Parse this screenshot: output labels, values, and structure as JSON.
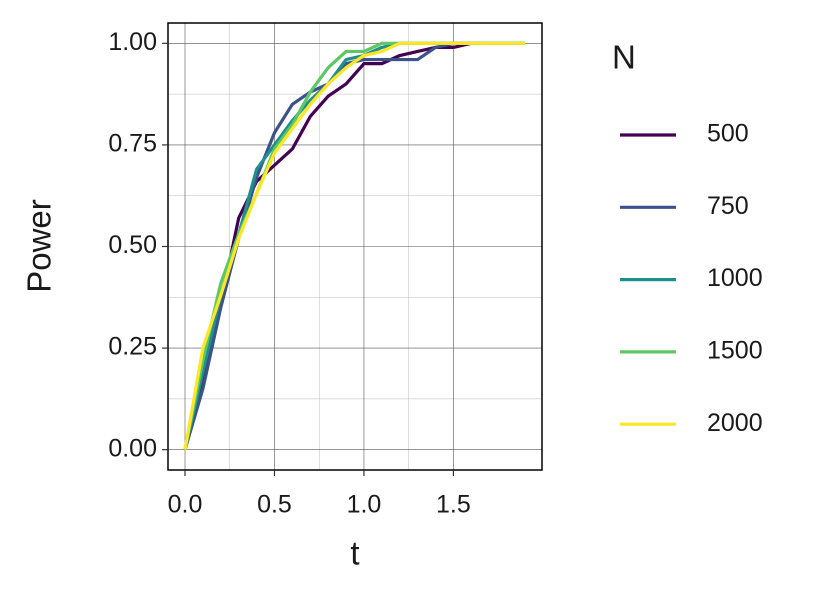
{
  "chart_data": {
    "type": "line",
    "x_label": "t",
    "y_label": "Power",
    "legend_title": "N",
    "x": [
      0,
      0.1,
      0.2,
      0.3,
      0.4,
      0.5,
      0.6,
      0.7,
      0.8,
      0.9,
      1.0,
      1.1,
      1.2,
      1.3,
      1.4,
      1.5,
      1.6,
      1.7,
      1.8,
      1.9
    ],
    "series": [
      {
        "name": "500",
        "color": "#440154",
        "values": [
          0,
          0.17,
          0.36,
          0.57,
          0.66,
          0.7,
          0.74,
          0.82,
          0.87,
          0.9,
          0.95,
          0.95,
          0.97,
          0.98,
          0.99,
          0.99,
          1,
          1,
          1,
          1
        ]
      },
      {
        "name": "750",
        "color": "#3B528B",
        "values": [
          0,
          0.15,
          0.35,
          0.52,
          0.67,
          0.78,
          0.85,
          0.88,
          0.9,
          0.95,
          0.96,
          0.96,
          0.96,
          0.96,
          0.99,
          1,
          1,
          1,
          1,
          1
        ]
      },
      {
        "name": "1000",
        "color": "#21908C",
        "values": [
          0,
          0.19,
          0.38,
          0.53,
          0.69,
          0.75,
          0.81,
          0.86,
          0.9,
          0.96,
          0.97,
          0.99,
          1,
          1,
          1,
          1,
          1,
          1,
          1,
          1
        ]
      },
      {
        "name": "1500",
        "color": "#5DC863",
        "values": [
          0,
          0.22,
          0.41,
          0.53,
          0.63,
          0.74,
          0.8,
          0.88,
          0.94,
          0.98,
          0.98,
          1,
          1,
          1,
          1,
          1,
          1,
          1,
          1,
          1
        ]
      },
      {
        "name": "2000",
        "color": "#FDE725",
        "values": [
          0,
          0.25,
          0.38,
          0.52,
          0.63,
          0.73,
          0.79,
          0.85,
          0.9,
          0.94,
          0.97,
          0.98,
          1,
          1,
          1,
          1,
          1,
          1,
          1,
          1
        ]
      }
    ],
    "xlim": [
      -0.095,
      1.995
    ],
    "ylim": [
      -0.05,
      1.05
    ],
    "xticks": [
      {
        "value": 0,
        "label": "0.0"
      },
      0.5,
      {
        "value": 1,
        "label": "1.0"
      },
      1.5
    ],
    "yticks": [
      {
        "value": 0,
        "label": "0.00"
      },
      0.25,
      {
        "value": 0.5,
        "label": "0.50"
      },
      0.75,
      {
        "value": 1,
        "label": "1.00"
      }
    ],
    "grid": true,
    "minor_grid": true,
    "legend": "right"
  }
}
